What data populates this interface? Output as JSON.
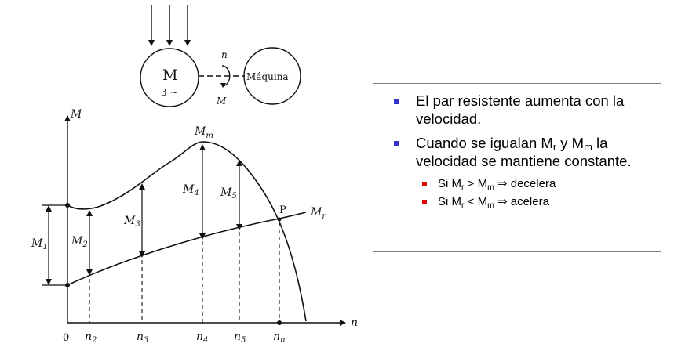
{
  "diagram": {
    "motor_letter": "M",
    "motor_phase": "3 ~",
    "machine_label": "Máquina",
    "speed_symbol": "n",
    "torque_symbol": "M",
    "y_axis_label": "M",
    "x_axis_label": "n",
    "origin_label": "0",
    "curve_label_main": "M",
    "curve_label_main_sub": "m",
    "curve_label_resist": "M",
    "curve_label_resist_sub": "r",
    "point_label": "P",
    "torque_labels": [
      {
        "main": "M",
        "sub": "1"
      },
      {
        "main": "M",
        "sub": "2"
      },
      {
        "main": "M",
        "sub": "3"
      },
      {
        "main": "M",
        "sub": "4"
      },
      {
        "main": "M",
        "sub": "5"
      }
    ],
    "speed_ticks": [
      {
        "main": "n",
        "sub": "2"
      },
      {
        "main": "n",
        "sub": "3"
      },
      {
        "main": "n",
        "sub": "4"
      },
      {
        "main": "n",
        "sub": "5"
      },
      {
        "main": "n",
        "sub": "n"
      }
    ]
  },
  "bullets": {
    "b1": "El par resistente aumenta con la velocidad.",
    "b2_a": "Cuando se igualan M",
    "b2_sub1": "r",
    "b2_b": " y M",
    "b2_sub2": "m",
    "b2_c": " la velocidad se mantiene constante.",
    "s1_a": "Si M",
    "s1_sub1": "r",
    "s1_b": " > M",
    "s1_sub2": "m",
    "s1_c": " ⇒ decelera",
    "s2_a": "Si M",
    "s2_sub1": "r",
    "s2_b": " < M",
    "s2_sub2": "m",
    "s2_c": " ⇒ acelera"
  },
  "colors": {
    "main_bullet": "#3333cc",
    "sub_bullet": "#e00000"
  }
}
